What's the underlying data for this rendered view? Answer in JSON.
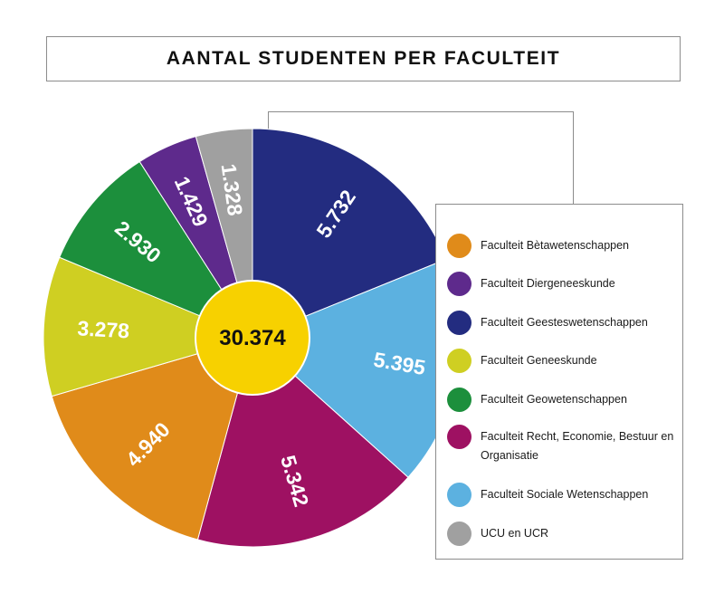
{
  "title": "AANTAL STUDENTEN PER FACULTEIT",
  "chart_data": {
    "type": "pie",
    "center_label": "30.374",
    "slices": [
      {
        "name": "Faculteit Geesteswetenschappen",
        "value": 5732,
        "label": "5.732",
        "color": "#232c80"
      },
      {
        "name": "Faculteit Sociale Wetenschappen",
        "value": 5395,
        "label": "5.395",
        "color": "#5cb1e0"
      },
      {
        "name": "Faculteit Recht, Economie, Bestuur en Organisatie",
        "value": 5342,
        "label": "5.342",
        "color": "#9e1162"
      },
      {
        "name": "Faculteit Bètawetenschappen",
        "value": 4940,
        "label": "4.940",
        "color": "#e08b1a"
      },
      {
        "name": "Faculteit Geneeskunde",
        "value": 3278,
        "label": "3.278",
        "color": "#cfcf22"
      },
      {
        "name": "Faculteit Geowetenschappen",
        "value": 2930,
        "label": "2.930",
        "color": "#1c8f3c"
      },
      {
        "name": "Faculteit Diergeneeskunde",
        "value": 1429,
        "label": "1.429",
        "color": "#5e2a8c"
      },
      {
        "name": "UCU en UCR",
        "value": 1328,
        "label": "1.328",
        "color": "#a0a0a0"
      }
    ],
    "center_color": "#f7d100",
    "label_color": "#ffffff"
  },
  "legend": [
    {
      "label": "Faculteit Bètawetenschappen",
      "color": "#e08b1a"
    },
    {
      "label": "Faculteit Diergeneeskunde",
      "color": "#5e2a8c"
    },
    {
      "label": "Faculteit Geesteswetenschappen",
      "color": "#232c80"
    },
    {
      "label": "Faculteit Geneeskunde",
      "color": "#cfcf22"
    },
    {
      "label": "Faculteit Geowetenschappen",
      "color": "#1c8f3c"
    },
    {
      "label": "Faculteit Recht, Economie, Bestuur en Organisatie",
      "color": "#9e1162"
    },
    {
      "label": "Faculteit Sociale Wetenschappen",
      "color": "#5cb1e0"
    },
    {
      "label": "UCU en UCR",
      "color": "#a0a0a0"
    }
  ]
}
